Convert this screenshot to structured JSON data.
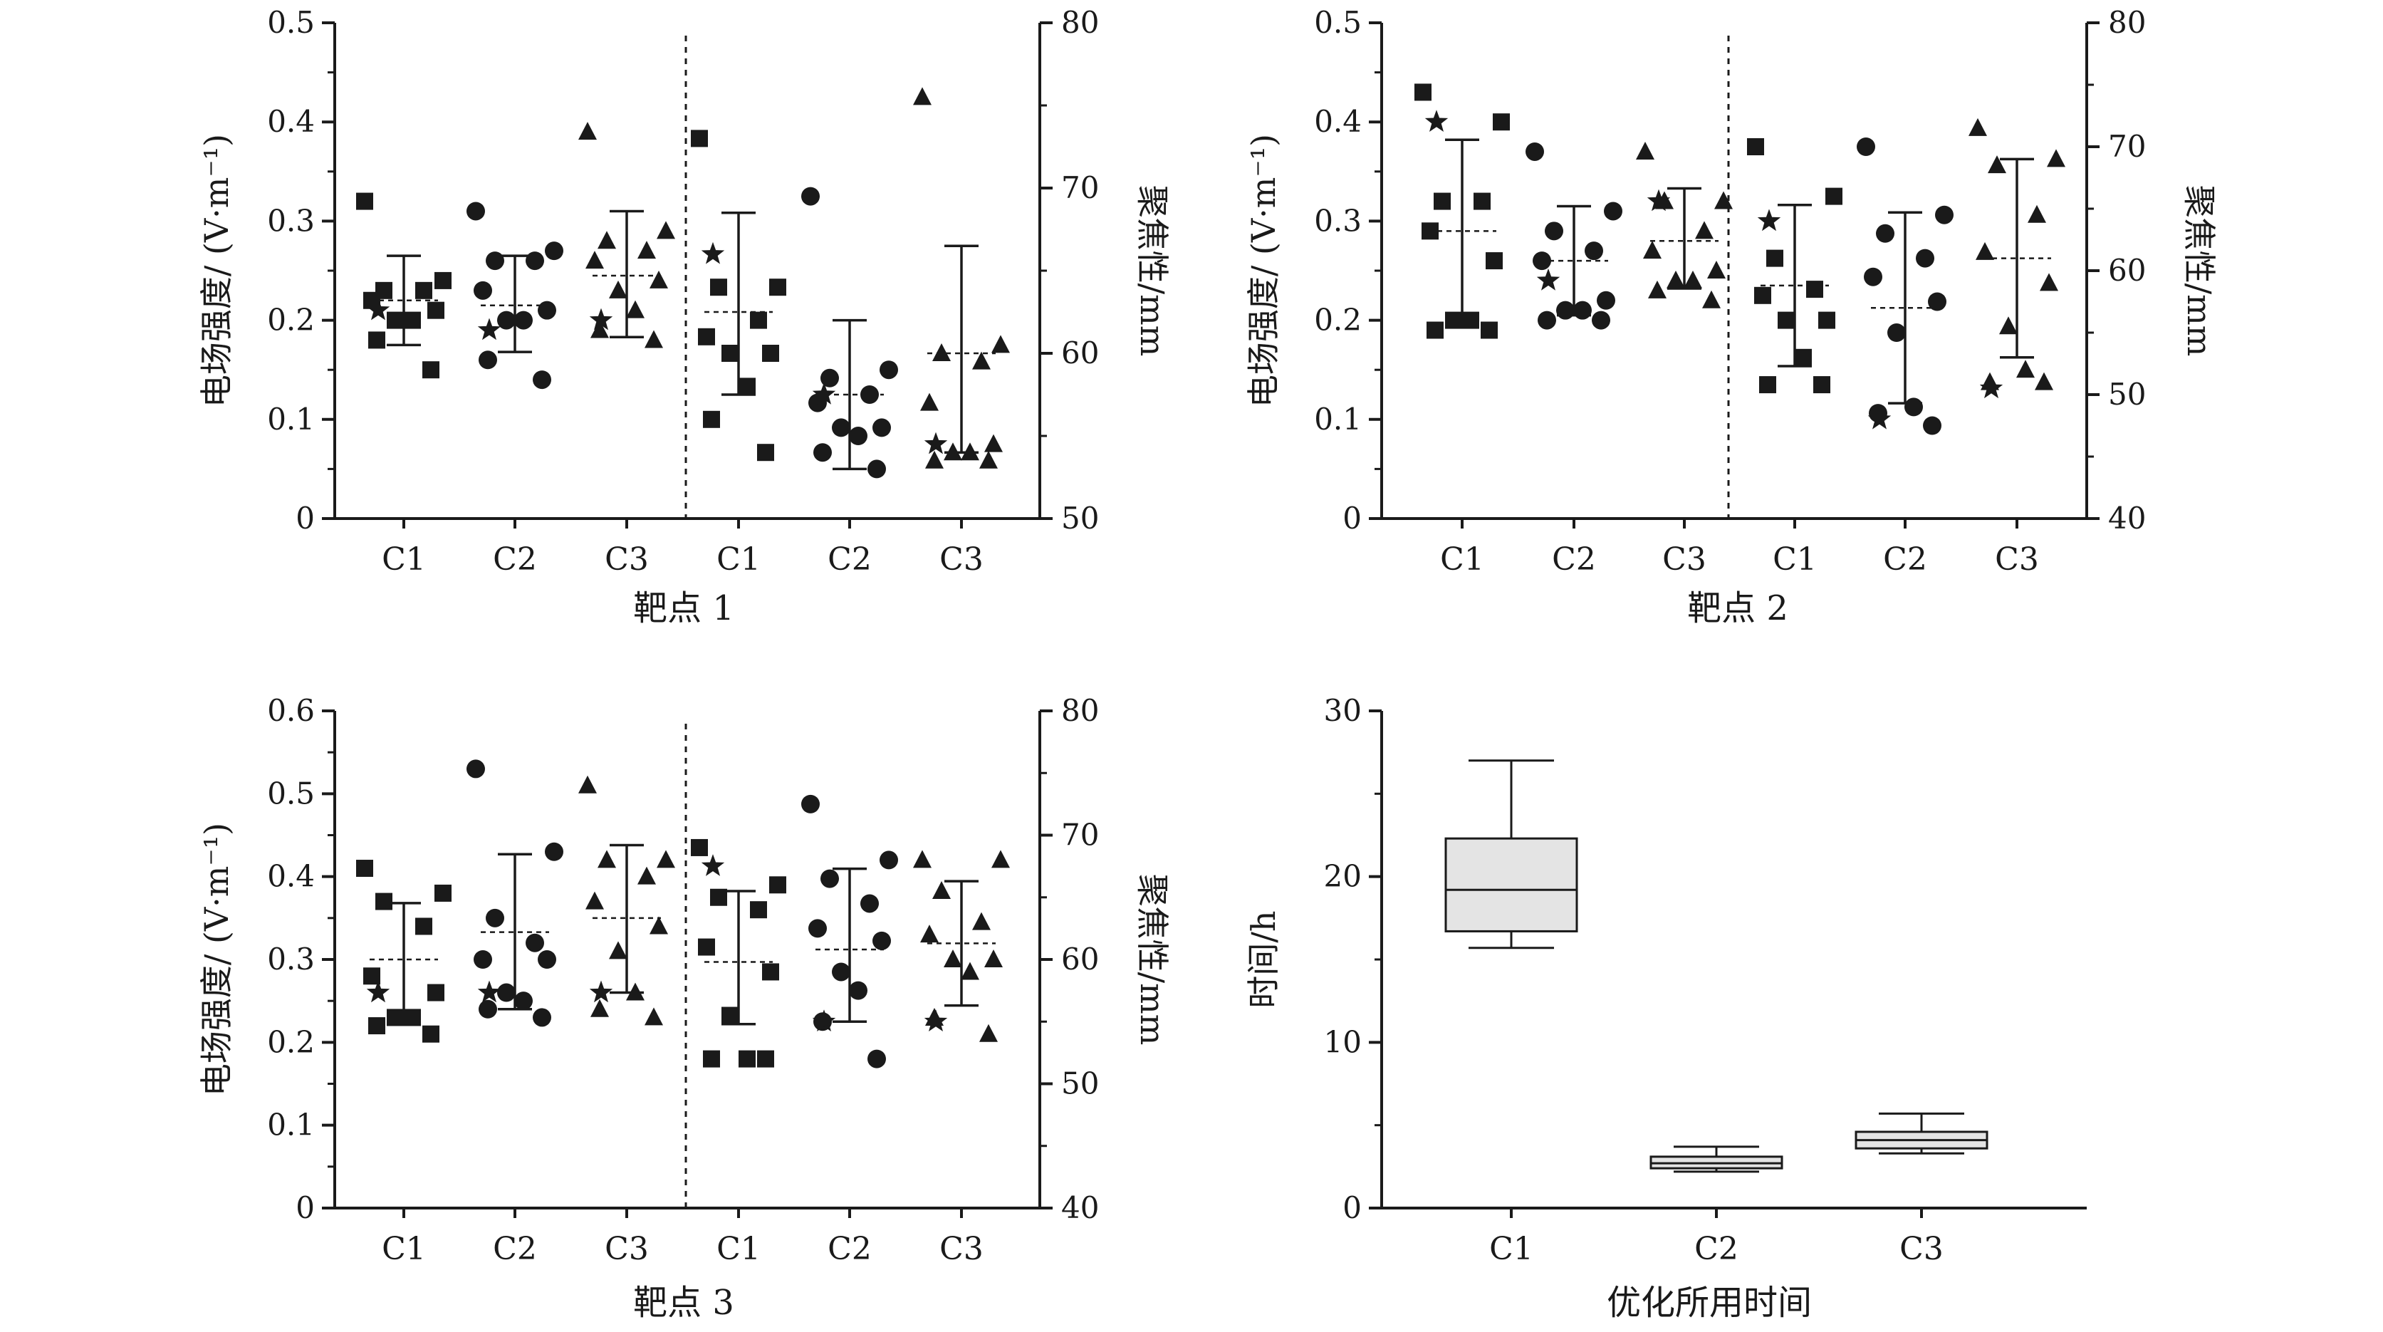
{
  "chart_data": [
    {
      "type": "scatter",
      "panel": "target1",
      "xlabel": "靶点 1",
      "ylabel_left": "电场强度/ (V·m⁻¹)",
      "ylabel_right": "聚焦性/mm",
      "ylim_left": [
        0,
        0.5
      ],
      "yticks_left": [
        "0",
        "0.1",
        "0.2",
        "0.3",
        "0.4",
        "0.5"
      ],
      "ylim_right": [
        50,
        80
      ],
      "yticks_right": [
        "50",
        "60",
        "70",
        "80"
      ],
      "categories": [
        "C1",
        "C2",
        "C3",
        "C1",
        "C2",
        "C3"
      ],
      "groups": [
        {
          "label": "C1",
          "axis": "left",
          "marker": "square",
          "points": [
            0.32,
            0.24,
            0.23,
            0.23,
            0.22,
            0.21,
            0.2,
            0.2,
            0.18,
            0.15
          ],
          "star": 0.21,
          "mean": 0.22,
          "sd_low": 0.175,
          "sd_high": 0.265
        },
        {
          "label": "C2",
          "axis": "left",
          "marker": "circle",
          "points": [
            0.31,
            0.27,
            0.26,
            0.26,
            0.23,
            0.21,
            0.2,
            0.2,
            0.16,
            0.14
          ],
          "star": 0.19,
          "mean": 0.215,
          "sd_low": 0.168,
          "sd_high": 0.265
        },
        {
          "label": "C3",
          "axis": "left",
          "marker": "triangle",
          "points": [
            0.39,
            0.29,
            0.28,
            0.27,
            0.26,
            0.24,
            0.23,
            0.21,
            0.19,
            0.18
          ],
          "star": 0.2,
          "mean": 0.245,
          "sd_low": 0.183,
          "sd_high": 0.31
        },
        {
          "label": "C1",
          "axis": "right",
          "marker": "square",
          "points": [
            73,
            64,
            64,
            62,
            61,
            60,
            60,
            58,
            56,
            54
          ],
          "star": 66,
          "mean": 62.5,
          "sd_low": 57.5,
          "sd_high": 68.5
        },
        {
          "label": "C2",
          "axis": "right",
          "marker": "circle",
          "points": [
            69.5,
            59,
            58.5,
            57.5,
            57,
            55.5,
            55.5,
            55,
            54,
            53
          ],
          "star": 57.5,
          "mean": 57.5,
          "sd_low": 53,
          "sd_high": 62
        },
        {
          "label": "C3",
          "axis": "right",
          "marker": "triangle",
          "points": [
            75.5,
            60.5,
            60,
            59.5,
            57,
            54.5,
            54,
            54,
            53.5,
            53.5
          ],
          "star": 54.5,
          "mean": 60,
          "sd_low": 54,
          "sd_high": 66.5
        }
      ]
    },
    {
      "type": "scatter",
      "panel": "target2",
      "xlabel": "靶点 2",
      "ylabel_left": "电场强度/ (V·m⁻¹)",
      "ylabel_right": "聚焦性/mm",
      "ylim_left": [
        0,
        0.5
      ],
      "yticks_left": [
        "0",
        "0.1",
        "0.2",
        "0.3",
        "0.4",
        "0.5"
      ],
      "ylim_right": [
        40,
        80
      ],
      "yticks_right": [
        "40",
        "50",
        "60",
        "70",
        "80"
      ],
      "categories": [
        "C1",
        "C2",
        "C3",
        "C1",
        "C2",
        "C3"
      ],
      "groups": [
        {
          "label": "C1",
          "axis": "left",
          "marker": "square",
          "points": [
            0.43,
            0.4,
            0.32,
            0.32,
            0.29,
            0.26,
            0.2,
            0.2,
            0.19,
            0.19
          ],
          "star": 0.4,
          "mean": 0.29,
          "sd_low": 0.198,
          "sd_high": 0.382
        },
        {
          "label": "C2",
          "axis": "left",
          "marker": "circle",
          "points": [
            0.37,
            0.31,
            0.29,
            0.27,
            0.26,
            0.22,
            0.21,
            0.21,
            0.2,
            0.2
          ],
          "star": 0.24,
          "mean": 0.26,
          "sd_low": 0.205,
          "sd_high": 0.315
        },
        {
          "label": "C3",
          "axis": "left",
          "marker": "triangle",
          "points": [
            0.37,
            0.32,
            0.32,
            0.29,
            0.27,
            0.25,
            0.24,
            0.24,
            0.23,
            0.22
          ],
          "star": 0.32,
          "mean": 0.28,
          "sd_low": 0.232,
          "sd_high": 0.333
        },
        {
          "label": "C1",
          "axis": "right",
          "marker": "square",
          "points": [
            70,
            66,
            61,
            58.5,
            58,
            56,
            56,
            53,
            50.8,
            50.8
          ],
          "star": 64,
          "mean": 58.8,
          "sd_low": 52.3,
          "sd_high": 65.3
        },
        {
          "label": "C2",
          "axis": "right",
          "marker": "circle",
          "points": [
            70,
            64.5,
            63,
            61,
            59.5,
            57.5,
            55,
            49,
            48.5,
            47.5
          ],
          "star": 48,
          "mean": 57,
          "sd_low": 49.3,
          "sd_high": 64.7
        },
        {
          "label": "C3",
          "axis": "right",
          "marker": "triangle",
          "points": [
            71.5,
            69,
            68.5,
            64.5,
            61.5,
            59,
            55.5,
            52,
            51,
            51
          ],
          "star": 50.5,
          "mean": 61,
          "sd_low": 53,
          "sd_high": 69
        }
      ]
    },
    {
      "type": "scatter",
      "panel": "target3",
      "xlabel": "靶点 3",
      "ylabel_left": "电场强度/ (V·m⁻¹)",
      "ylabel_right": "聚焦性/mm",
      "ylim_left": [
        0,
        0.6
      ],
      "yticks_left": [
        "0",
        "0.1",
        "0.2",
        "0.3",
        "0.4",
        "0.5",
        "0.6"
      ],
      "ylim_right": [
        40,
        80
      ],
      "yticks_right": [
        "40",
        "50",
        "60",
        "70",
        "80"
      ],
      "categories": [
        "C1",
        "C2",
        "C3",
        "C1",
        "C2",
        "C3"
      ],
      "groups": [
        {
          "label": "C1",
          "axis": "left",
          "marker": "square",
          "points": [
            0.41,
            0.38,
            0.37,
            0.34,
            0.28,
            0.26,
            0.23,
            0.23,
            0.22,
            0.21
          ],
          "star": 0.26,
          "mean": 0.3,
          "sd_low": 0.232,
          "sd_high": 0.368
        },
        {
          "label": "C2",
          "axis": "left",
          "marker": "circle",
          "points": [
            0.53,
            0.43,
            0.35,
            0.32,
            0.3,
            0.3,
            0.26,
            0.25,
            0.24,
            0.23
          ],
          "star": 0.26,
          "mean": 0.333,
          "sd_low": 0.24,
          "sd_high": 0.427
        },
        {
          "label": "C3",
          "axis": "left",
          "marker": "triangle",
          "points": [
            0.51,
            0.42,
            0.42,
            0.4,
            0.37,
            0.34,
            0.31,
            0.26,
            0.24,
            0.23
          ],
          "star": 0.26,
          "mean": 0.35,
          "sd_low": 0.26,
          "sd_high": 0.438
        },
        {
          "label": "C1",
          "axis": "right",
          "marker": "square",
          "points": [
            69,
            66,
            65,
            64,
            61,
            59,
            55.5,
            52,
            52,
            52
          ],
          "star": 67.5,
          "mean": 59.8,
          "sd_low": 54.8,
          "sd_high": 65.5
        },
        {
          "label": "C2",
          "axis": "right",
          "marker": "circle",
          "points": [
            72.5,
            68,
            66.5,
            64.5,
            62.5,
            61.5,
            59,
            57.5,
            55,
            52
          ],
          "star": 55,
          "mean": 60.8,
          "sd_low": 55,
          "sd_high": 67.3
        },
        {
          "label": "C3",
          "axis": "right",
          "marker": "triangle",
          "points": [
            68,
            68,
            65.5,
            63,
            62,
            60,
            60,
            59,
            55.3,
            54
          ],
          "star": 55,
          "mean": 61.3,
          "sd_low": 56.3,
          "sd_high": 66.3
        }
      ]
    },
    {
      "type": "box",
      "panel": "time",
      "xlabel": "优化所用时间",
      "ylabel": "时间/h",
      "ylim": [
        0,
        30
      ],
      "yticks": [
        "0",
        "10",
        "20",
        "30"
      ],
      "categories": [
        "C1",
        "C2",
        "C3"
      ],
      "boxes": [
        {
          "label": "C1",
          "min": 15.7,
          "q1": 16.7,
          "median": 19.2,
          "q3": 22.3,
          "max": 27
        },
        {
          "label": "C2",
          "min": 2.2,
          "q1": 2.4,
          "median": 2.7,
          "q3": 3.1,
          "max": 3.7
        },
        {
          "label": "C3",
          "min": 3.3,
          "q1": 3.6,
          "median": 4.1,
          "q3": 4.6,
          "max": 5.7
        }
      ]
    }
  ]
}
